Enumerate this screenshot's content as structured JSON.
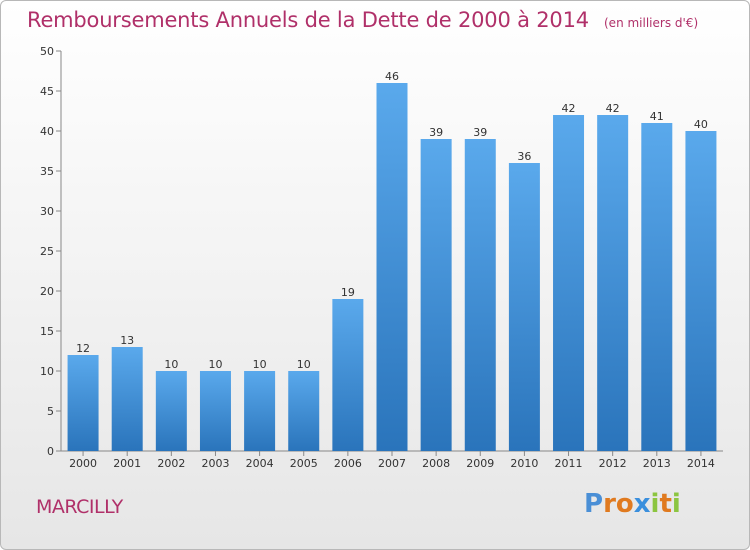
{
  "header": {
    "title": "Remboursements Annuels de la Dette de 2000 à 2014",
    "unit": "(en milliers d'€)"
  },
  "footer": {
    "commune": "MARCILLY",
    "logo": {
      "letters": [
        "P",
        "r",
        "o",
        "x",
        "i",
        "t",
        "i"
      ],
      "colors": [
        "#4a8fd6",
        "#e07a1f",
        "#e07a1f",
        "#3a8fdd",
        "#8cc540",
        "#e07a1f",
        "#8cc540"
      ]
    }
  },
  "chart_data": {
    "type": "bar",
    "title": "Remboursements Annuels de la Dette de 2000 à 2014",
    "unit_label": "(en milliers d'€)",
    "xlabel": "",
    "ylabel": "",
    "categories": [
      "2000",
      "2001",
      "2002",
      "2003",
      "2004",
      "2005",
      "2006",
      "2007",
      "2008",
      "2009",
      "2010",
      "2011",
      "2012",
      "2013",
      "2014"
    ],
    "values": [
      12,
      13,
      10,
      10,
      10,
      10,
      19,
      46,
      39,
      39,
      36,
      42,
      42,
      41,
      40
    ],
    "ylim": [
      0,
      50
    ],
    "yticks": [
      0,
      5,
      10,
      15,
      20,
      25,
      30,
      35,
      40,
      45,
      50
    ],
    "grid": false,
    "colors": {
      "bar_light": "#5aa9ec",
      "bar_dark": "#2a74bb",
      "axis": "#888888"
    }
  }
}
